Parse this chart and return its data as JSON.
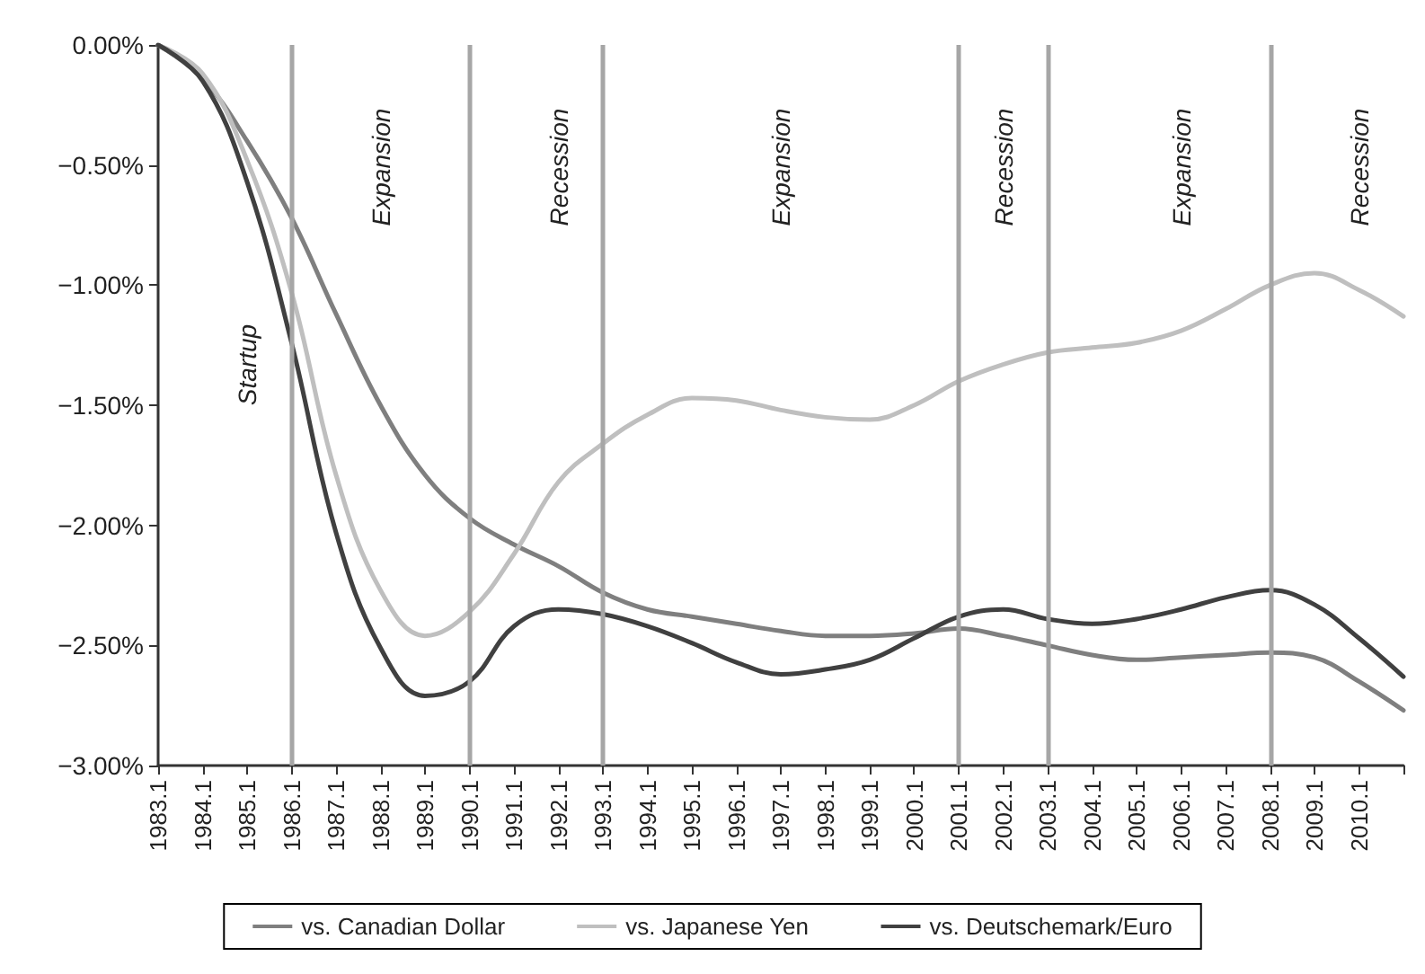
{
  "chart_data": {
    "type": "line",
    "ylim": [
      -3,
      0
    ],
    "categories": [
      "1983.1",
      "1984.1",
      "1985.1",
      "1986.1",
      "1987.1",
      "1988.1",
      "1989.1",
      "1990.1",
      "1991.1",
      "1992.1",
      "1993.1",
      "1994.1",
      "1995.1",
      "1996.1",
      "1997.1",
      "1998.1",
      "1999.1",
      "2000.1",
      "2001.1",
      "2002.1",
      "2003.1",
      "2004.1",
      "2005.1",
      "2006.1",
      "2007.1",
      "2008.1",
      "2009.1",
      "2010.1",
      null
    ],
    "yticks": [
      {
        "value": 0,
        "label": "0.00%"
      },
      {
        "value": -0.5,
        "label": "−0.50%"
      },
      {
        "value": -1,
        "label": "−1.00%"
      },
      {
        "value": -1.5,
        "label": "−1.50%"
      },
      {
        "value": -2,
        "label": "−2.00%"
      },
      {
        "value": -2.5,
        "label": "−2.50%"
      },
      {
        "value": -3,
        "label": "−3.00%"
      }
    ],
    "series": [
      {
        "name": "vs. Canadian Dollar",
        "color": "#7f7f7f",
        "values": [
          0,
          -0.14,
          -0.4,
          -0.72,
          -1.12,
          -1.5,
          -1.79,
          -1.97,
          -2.08,
          -2.17,
          -2.28,
          -2.35,
          -2.38,
          -2.41,
          -2.44,
          -2.46,
          -2.46,
          -2.45,
          -2.43,
          -2.46,
          -2.5,
          -2.54,
          -2.56,
          -2.55,
          -2.54,
          -2.53,
          -2.55,
          -2.65,
          -2.77
        ]
      },
      {
        "name": "vs. Japanese Yen",
        "color": "#bfbfbf",
        "values": [
          0,
          -0.12,
          -0.48,
          -1.03,
          -1.79,
          -2.27,
          -2.46,
          -2.36,
          -2.12,
          -1.82,
          -1.66,
          -1.54,
          -1.47,
          -1.48,
          -1.52,
          -1.55,
          -1.56,
          -1.5,
          -1.4,
          -1.33,
          -1.28,
          -1.26,
          -1.24,
          -1.19,
          -1.1,
          -1.0,
          -0.95,
          -1.02,
          -1.13
        ]
      },
      {
        "name": "vs. Deutschemark/Euro",
        "color": "#404040",
        "values": [
          0,
          -0.15,
          -0.57,
          -1.24,
          -2.03,
          -2.51,
          -2.71,
          -2.65,
          -2.42,
          -2.35,
          -2.37,
          -2.42,
          -2.49,
          -2.57,
          -2.62,
          -2.6,
          -2.56,
          -2.47,
          -2.38,
          -2.35,
          -2.39,
          -2.41,
          -2.39,
          -2.35,
          -2.3,
          -2.27,
          -2.33,
          -2.47,
          -2.63
        ]
      }
    ],
    "ref_lines": [
      {
        "axis": "x",
        "value": "1986.1",
        "label": null,
        "color": "#a6a6a6"
      },
      {
        "axis": "x",
        "value": "1990.1",
        "label": null,
        "color": "#a6a6a6"
      },
      {
        "axis": "x",
        "value": "1993.1",
        "label": null,
        "color": "#a6a6a6"
      },
      {
        "axis": "x",
        "value": "2001.1",
        "label": null,
        "color": "#a6a6a6"
      },
      {
        "axis": "x",
        "value": "2003.1",
        "label": null,
        "color": "#a6a6a6"
      },
      {
        "axis": "x",
        "value": "2008.1",
        "label": null,
        "color": "#a6a6a6"
      }
    ],
    "annotations": [
      "Startup",
      "Expansion",
      "Recession",
      "Expansion",
      "Recession",
      "Expansion",
      "Recession"
    ],
    "legend": "bottom",
    "grid": false,
    "marker": "none",
    "line_style": "solid"
  }
}
